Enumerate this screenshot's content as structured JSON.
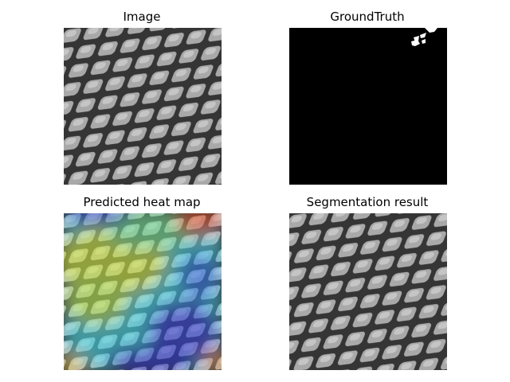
{
  "figure": {
    "panels": [
      {
        "id": "image",
        "title": "Image",
        "content": "grayscale-mesh-texture"
      },
      {
        "id": "ground-truth",
        "title": "GroundTruth",
        "content": "binary-defect-mask"
      },
      {
        "id": "heat-map",
        "title": "Predicted heat map",
        "content": "jet-colormap-overlay"
      },
      {
        "id": "segmentation",
        "title": "Segmentation result",
        "content": "grayscale-mesh-texture"
      }
    ]
  },
  "colors": {
    "mask_background": "#000000",
    "mask_defect": "#ffffff",
    "mesh_dark": "#3a3a3a",
    "mesh_light": "#bdbdbd",
    "heat_low": "#2a2fd0",
    "heat_mid": "#40d0e0",
    "heat_high": "#e0e040",
    "heat_max": "#d02020"
  }
}
